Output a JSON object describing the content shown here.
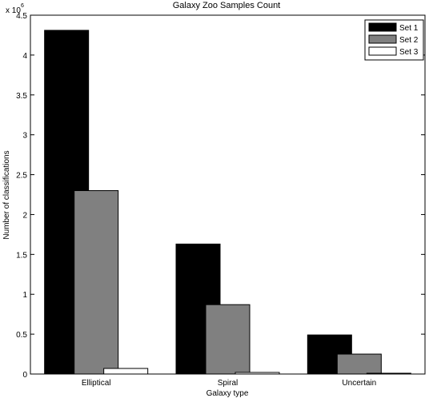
{
  "chart_data": {
    "type": "bar",
    "title": "Galaxy Zoo Samples Count",
    "xlabel": "Galaxy type",
    "ylabel": "Number of classifications",
    "y_multiplier_label": "x 10",
    "y_multiplier_exponent": "6",
    "categories": [
      "Elliptical",
      "Spiral",
      "Uncertain"
    ],
    "ylim": [
      0,
      4.5
    ],
    "yticks": [
      "0",
      "0.5",
      "1",
      "1.5",
      "2",
      "2.5",
      "3",
      "3.5",
      "4",
      "4.5"
    ],
    "series": [
      {
        "name": "Set 1",
        "color": "#000000",
        "values": [
          4.31,
          1.63,
          0.49
        ]
      },
      {
        "name": "Set 2",
        "color": "#808080",
        "values": [
          2.3,
          0.87,
          0.25
        ]
      },
      {
        "name": "Set 3",
        "color": "#ffffff",
        "values": [
          0.07,
          0.02,
          0.01
        ]
      }
    ],
    "legend_position": "top-right",
    "grid": false
  }
}
